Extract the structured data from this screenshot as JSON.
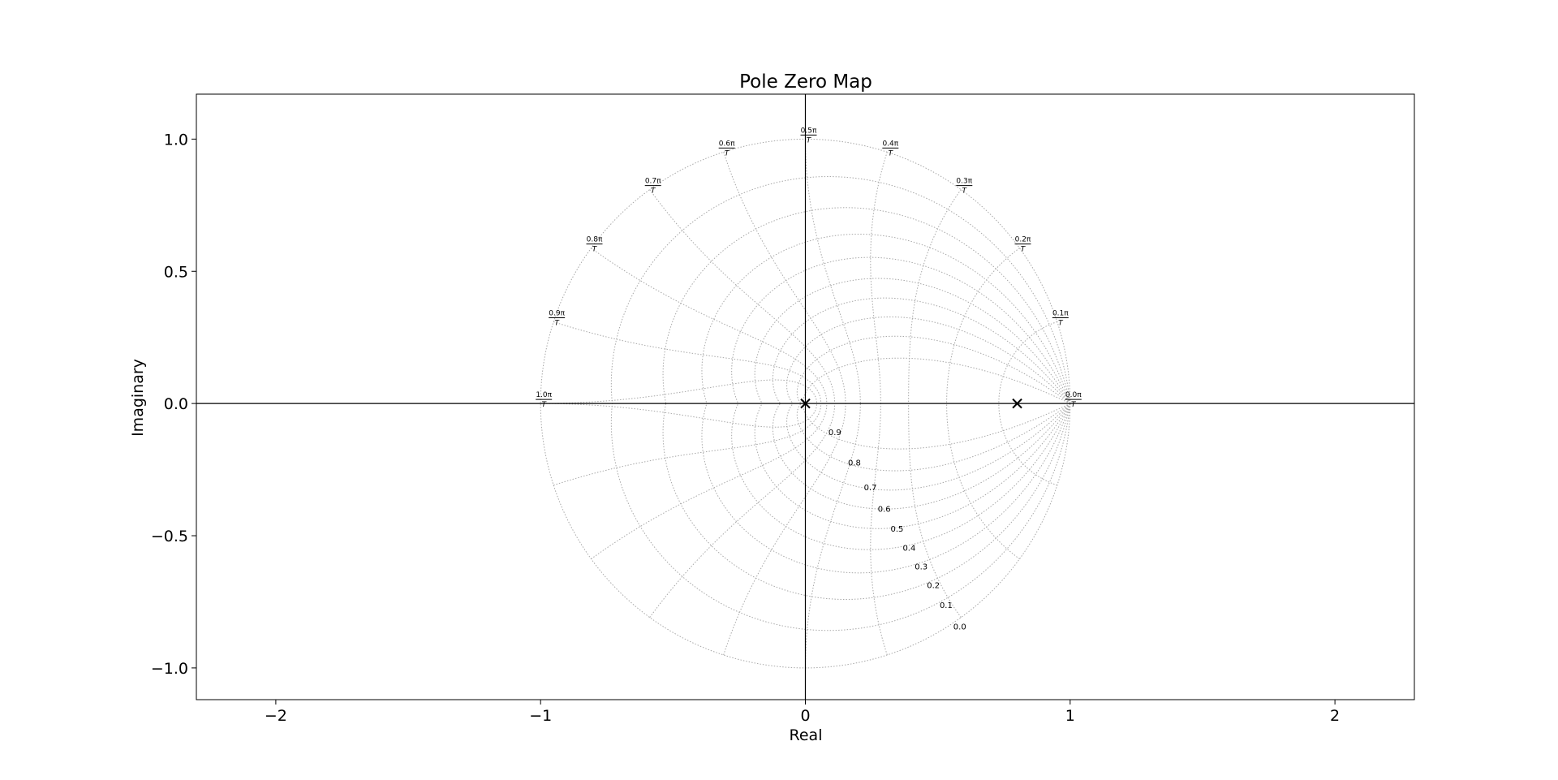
{
  "chart_data": {
    "type": "scatter",
    "title": "Pole Zero Map",
    "xlabel": "Real",
    "ylabel": "Imaginary",
    "xlim": [
      -2.3,
      2.3
    ],
    "ylim": [
      -1.12,
      1.17
    ],
    "x_ticks": [
      -2,
      -1,
      0,
      1,
      2
    ],
    "x_tick_labels": [
      "−2",
      "−1",
      "0",
      "1",
      "2"
    ],
    "y_ticks": [
      1.0,
      0.5,
      0.0,
      -0.5,
      -1.0
    ],
    "y_tick_labels": [
      "1.0",
      "0.5",
      "0.0",
      "−0.5",
      "−1.0"
    ],
    "grid": true,
    "grid_type": "zgrid",
    "damping_ratios": [
      0.0,
      0.1,
      0.2,
      0.3,
      0.4,
      0.5,
      0.6,
      0.7,
      0.8,
      0.9
    ],
    "damping_labels": [
      "0.0",
      "0.1",
      "0.2",
      "0.3",
      "0.4",
      "0.5",
      "0.6",
      "0.7",
      "0.8",
      "0.9"
    ],
    "natural_frequencies": [
      0.0,
      0.1,
      0.2,
      0.3,
      0.4,
      0.5,
      0.6,
      0.7,
      0.8,
      0.9,
      1.0
    ],
    "frequency_labels": [
      {
        "num": "0.0π",
        "den": "T"
      },
      {
        "num": "0.1π",
        "den": "T"
      },
      {
        "num": "0.2π",
        "den": "T"
      },
      {
        "num": "0.3π",
        "den": "T"
      },
      {
        "num": "0.4π",
        "den": "T"
      },
      {
        "num": "0.5π",
        "den": "T"
      },
      {
        "num": "0.6π",
        "den": "T"
      },
      {
        "num": "0.7π",
        "den": "T"
      },
      {
        "num": "0.8π",
        "den": "T"
      },
      {
        "num": "0.9π",
        "den": "T"
      },
      {
        "num": "1.0π",
        "den": "T"
      }
    ],
    "series": [
      {
        "marker": "x",
        "color": "#000000",
        "points": [
          {
            "x": 0.0,
            "y": 0.0
          },
          {
            "x": 0.8,
            "y": 0.0
          }
        ]
      }
    ]
  }
}
